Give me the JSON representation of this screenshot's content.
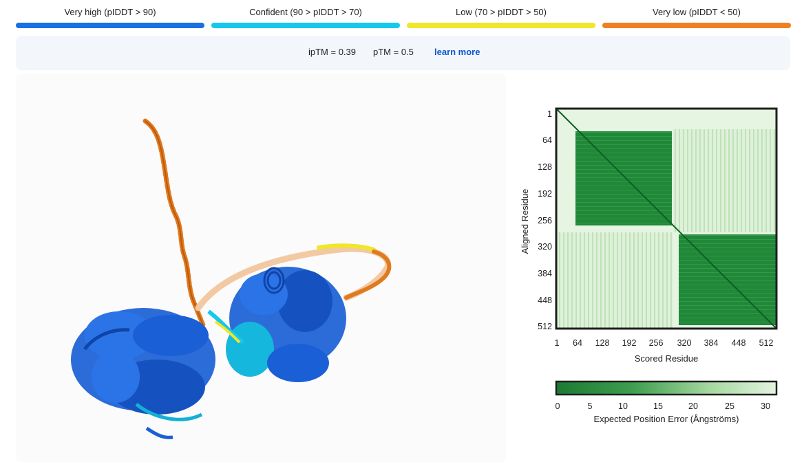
{
  "legend": {
    "items": [
      {
        "label": "Very high (pIDDT > 90)",
        "color": "#1a6fe3"
      },
      {
        "label": "Confident (90 > pIDDT > 70)",
        "color": "#16c8ec"
      },
      {
        "label": "Low (70 > pIDDT > 50)",
        "color": "#f0e62a"
      },
      {
        "label": "Very low (pIDDT < 50)",
        "color": "#f07f22"
      }
    ]
  },
  "metrics": {
    "iptm": "ipTM = 0.39",
    "ptm": "pTM = 0.5",
    "learn_more": "learn more"
  },
  "pae": {
    "y_ticks": [
      "1",
      "64",
      "128",
      "192",
      "256",
      "320",
      "384",
      "448",
      "512"
    ],
    "x_ticks": [
      "1",
      "64",
      "128",
      "192",
      "256",
      "320",
      "384",
      "448",
      "512"
    ],
    "x_title": "Scored Residue",
    "y_title": "Aligned Residue",
    "colorbar_ticks": [
      "0",
      "5",
      "10",
      "15",
      "20",
      "25",
      "30"
    ],
    "colorbar_title": "Expected Position Error (Ångströms)",
    "colors": {
      "low": "#1b7a33",
      "high": "#e3f3e0"
    }
  }
}
